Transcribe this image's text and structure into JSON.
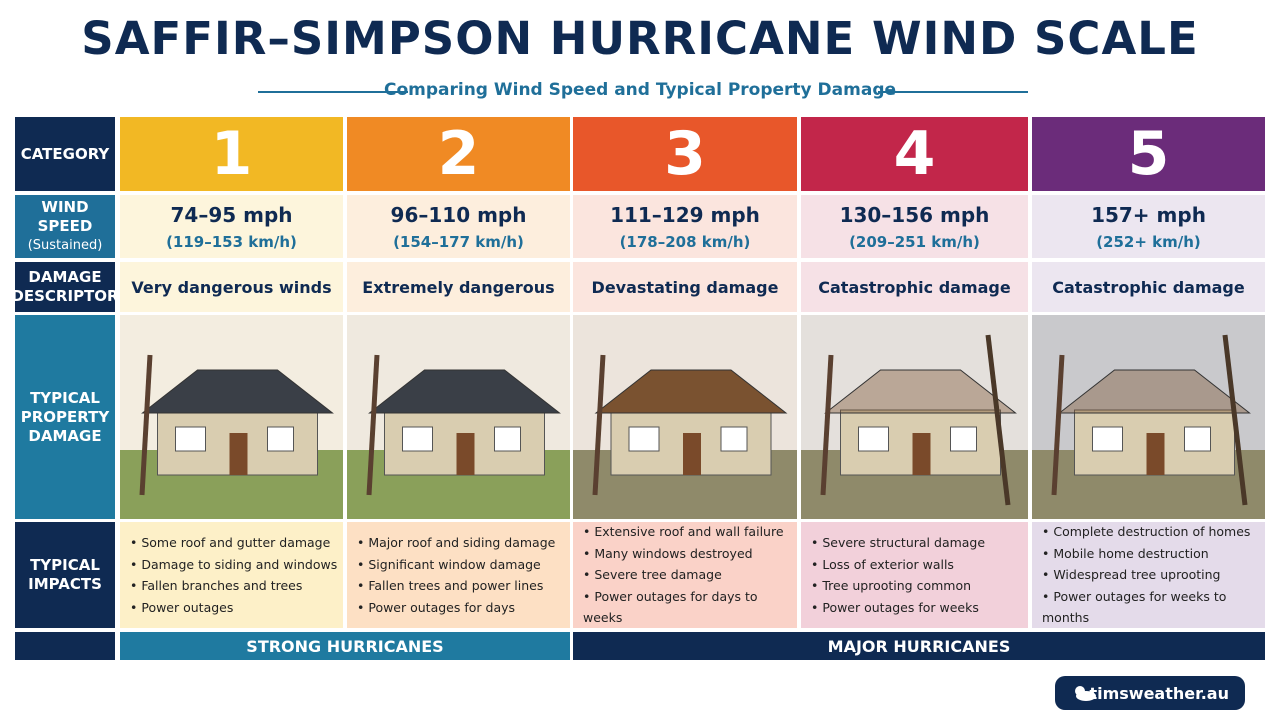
{
  "header": {
    "title": "SAFFIR–SIMPSON HURRICANE WIND SCALE",
    "subtitle": "Comparing Wind Speed and Typical Property Damage"
  },
  "table": {
    "row_labels": {
      "category": "CATEGORY",
      "wind_speed": "WIND SPEED",
      "wind_speed_note": "(Sustained)",
      "damage_descriptor": "DAMAGE DESCRIPTOR",
      "property_damage": "TYPICAL PROPERTY DAMAGE",
      "impacts": "TYPICAL IMPACTS"
    },
    "columns": [
      {
        "category": "1",
        "mph": "74–95 mph",
        "kmh": "(119–153 km/h)",
        "descriptor": "Very dangerous winds",
        "impacts": [
          "Some roof and gutter damage",
          "Damage to siding and windows",
          "Fallen branches and trees",
          "Power outages"
        ]
      },
      {
        "category": "2",
        "mph": "96–110 mph",
        "kmh": "(154–177 km/h)",
        "descriptor": "Extremely dangerous",
        "impacts": [
          "Major roof and siding damage",
          "Significant window damage",
          "Fallen trees and power lines",
          "Power outages for days"
        ]
      },
      {
        "category": "3",
        "mph": "111–129 mph",
        "kmh": "(178–208 km/h)",
        "descriptor": "Devastating damage",
        "impacts": [
          "Extensive roof and wall failure",
          "Many windows destroyed",
          "Severe tree damage",
          "Power outages for days to weeks"
        ]
      },
      {
        "category": "4",
        "mph": "130–156 mph",
        "kmh": "(209–251 km/h)",
        "descriptor": "Catastrophic damage",
        "impacts": [
          "Severe structural damage",
          "Loss of exterior walls",
          "Tree uprooting common",
          "Power outages for weeks"
        ]
      },
      {
        "category": "5",
        "mph": "157+ mph",
        "kmh": "(252+ km/h)",
        "descriptor": "Catastrophic damage",
        "impacts": [
          "Complete destruction of homes",
          "Mobile home destruction",
          "Widespread tree uprooting",
          "Power outages for weeks to months"
        ]
      }
    ],
    "groups": [
      "STRONG HURRICANES",
      "MAJOR HURRICANES"
    ]
  },
  "footer": {
    "logo": "timsweather.au"
  }
}
